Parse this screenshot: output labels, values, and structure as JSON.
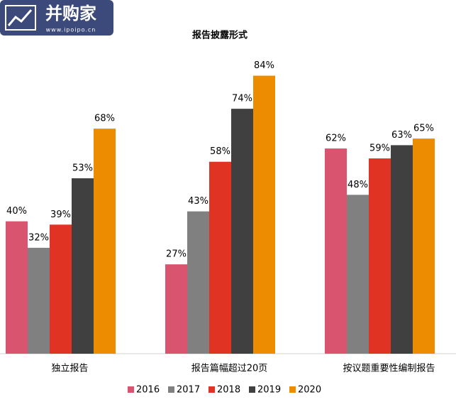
{
  "chart_data": {
    "type": "bar",
    "title": "报告披露形式",
    "logo_text": "并购家",
    "logo_url": "www.ipoipo.cn",
    "categories": [
      "独立报告",
      "报告篇幅超过20页",
      "按议题重要性编制报告"
    ],
    "series": [
      {
        "name": "2016",
        "color": "#d9546e",
        "values": [
          40,
          27,
          62
        ],
        "value_labels": [
          "40%",
          "27%",
          "62%"
        ]
      },
      {
        "name": "2017",
        "color": "#808080",
        "values": [
          32,
          43,
          48
        ],
        "value_labels": [
          "32%",
          "43%",
          "48%"
        ]
      },
      {
        "name": "2018",
        "color": "#e03323",
        "values": [
          39,
          58,
          59
        ],
        "value_labels": [
          "39%",
          "58%",
          "59%"
        ]
      },
      {
        "name": "2019",
        "color": "#404040",
        "values": [
          53,
          74,
          63
        ],
        "value_labels": [
          "53%",
          "74%",
          "63%"
        ]
      },
      {
        "name": "2020",
        "color": "#ee8c00",
        "values": [
          68,
          84,
          65
        ],
        "value_labels": [
          "68%",
          "84%",
          "65%"
        ]
      }
    ]
  }
}
